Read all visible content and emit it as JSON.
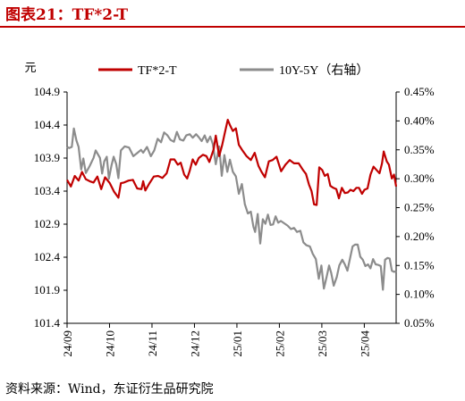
{
  "title": "图表21：TF*2-T",
  "source": "资料来源：Wind，东证衍生品研究院",
  "chart_data": {
    "type": "line",
    "title": "图表21：TF*2-T",
    "ylabel": "元",
    "ylim": [
      101.4,
      104.9
    ],
    "yticks": [
      "104.9",
      "104.4",
      "103.9",
      "103.4",
      "102.9",
      "102.4",
      "101.9",
      "101.4"
    ],
    "y2lim": [
      0.05,
      0.45
    ],
    "y2ticks": [
      "0.45%",
      "0.40%",
      "0.35%",
      "0.30%",
      "0.25%",
      "0.20%",
      "0.15%",
      "0.10%",
      "0.05%"
    ],
    "xticks": [
      "24/09",
      "24/10",
      "24/11",
      "24/12",
      "25/01",
      "25/02",
      "25/03",
      "25/04"
    ],
    "legend_position": "top",
    "series": [
      {
        "name": "TF*2-T",
        "axis": "left",
        "color": "#c00000",
        "points": [
          [
            0.0,
            103.57
          ],
          [
            0.9,
            103.47
          ],
          [
            1.8,
            103.63
          ],
          [
            2.7,
            103.56
          ],
          [
            3.5,
            103.69
          ],
          [
            4.4,
            103.58
          ],
          [
            5.3,
            103.55
          ],
          [
            6.2,
            103.53
          ],
          [
            7.1,
            103.62
          ],
          [
            8.0,
            103.43
          ],
          [
            8.9,
            103.61
          ],
          [
            10.0,
            103.52
          ],
          [
            11.0,
            103.39
          ],
          [
            12.0,
            103.3
          ],
          [
            12.6,
            103.52
          ],
          [
            13.3,
            103.53
          ],
          [
            14.4,
            103.56
          ],
          [
            15.4,
            103.57
          ],
          [
            16.4,
            103.44
          ],
          [
            17.4,
            103.43
          ],
          [
            17.8,
            103.55
          ],
          [
            18.3,
            103.41
          ],
          [
            19.3,
            103.52
          ],
          [
            20.3,
            103.62
          ],
          [
            21.3,
            103.63
          ],
          [
            22.3,
            103.6
          ],
          [
            23.3,
            103.67
          ],
          [
            24.2,
            103.88
          ],
          [
            25.1,
            103.88
          ],
          [
            25.9,
            103.8
          ],
          [
            26.6,
            103.83
          ],
          [
            27.4,
            103.65
          ],
          [
            28.1,
            103.59
          ],
          [
            28.7,
            103.71
          ],
          [
            29.4,
            103.88
          ],
          [
            30.1,
            103.8
          ],
          [
            30.8,
            103.9
          ],
          [
            31.8,
            103.95
          ],
          [
            32.6,
            103.93
          ],
          [
            33.3,
            103.84
          ],
          [
            34.3,
            104.03
          ],
          [
            34.8,
            104.24
          ],
          [
            35.6,
            103.93
          ],
          [
            36.3,
            104.1
          ],
          [
            36.9,
            104.28
          ],
          [
            37.6,
            104.48
          ],
          [
            38.1,
            104.4
          ],
          [
            38.8,
            104.31
          ],
          [
            39.5,
            104.35
          ],
          [
            40.2,
            104.1
          ],
          [
            41.0,
            104.02
          ],
          [
            42.0,
            103.93
          ],
          [
            43.0,
            103.87
          ],
          [
            43.9,
            103.98
          ],
          [
            44.8,
            103.78
          ],
          [
            45.5,
            103.69
          ],
          [
            46.3,
            103.61
          ],
          [
            47.2,
            103.85
          ],
          [
            48.1,
            103.87
          ],
          [
            49.0,
            103.92
          ],
          [
            50.1,
            103.7
          ],
          [
            51.1,
            103.8
          ],
          [
            52.1,
            103.87
          ],
          [
            53.1,
            103.82
          ],
          [
            54.2,
            103.82
          ],
          [
            55.2,
            103.72
          ],
          [
            55.9,
            103.66
          ],
          [
            56.6,
            103.5
          ],
          [
            57.2,
            103.4
          ],
          [
            57.8,
            103.2
          ],
          [
            58.4,
            103.19
          ],
          [
            59.0,
            103.76
          ],
          [
            59.7,
            103.72
          ],
          [
            60.3,
            103.63
          ],
          [
            61.0,
            103.66
          ],
          [
            61.6,
            103.48
          ],
          [
            62.3,
            103.45
          ],
          [
            63.0,
            103.43
          ],
          [
            63.6,
            103.29
          ],
          [
            64.3,
            103.45
          ],
          [
            65.0,
            103.37
          ],
          [
            65.7,
            103.38
          ],
          [
            66.3,
            103.42
          ],
          [
            67.0,
            103.4
          ],
          [
            67.7,
            103.45
          ],
          [
            68.3,
            103.45
          ],
          [
            69.0,
            103.36
          ],
          [
            69.6,
            103.42
          ],
          [
            70.3,
            103.44
          ],
          [
            71.0,
            103.65
          ],
          [
            71.7,
            103.77
          ],
          [
            72.4,
            103.72
          ],
          [
            73.1,
            103.67
          ],
          [
            73.7,
            103.82
          ],
          [
            74.1,
            104.0
          ],
          [
            74.8,
            103.85
          ],
          [
            75.3,
            103.8
          ],
          [
            76.0,
            103.59
          ],
          [
            76.5,
            103.65
          ],
          [
            77.0,
            103.47
          ]
        ]
      },
      {
        "name": "10Y-5Y（右轴）",
        "axis": "right",
        "color": "#8c8c8c",
        "points": [
          [
            0.0,
            0.355
          ],
          [
            0.5,
            0.353
          ],
          [
            1.1,
            0.355
          ],
          [
            1.6,
            0.387
          ],
          [
            2.2,
            0.366
          ],
          [
            2.7,
            0.355
          ],
          [
            3.3,
            0.316
          ],
          [
            3.8,
            0.335
          ],
          [
            4.4,
            0.31
          ],
          [
            5.3,
            0.322
          ],
          [
            6.2,
            0.336
          ],
          [
            6.7,
            0.349
          ],
          [
            7.7,
            0.336
          ],
          [
            8.2,
            0.309
          ],
          [
            8.7,
            0.33
          ],
          [
            9.3,
            0.338
          ],
          [
            9.8,
            0.3
          ],
          [
            10.4,
            0.323
          ],
          [
            10.9,
            0.338
          ],
          [
            11.5,
            0.325
          ],
          [
            12.0,
            0.301
          ],
          [
            12.6,
            0.349
          ],
          [
            13.5,
            0.356
          ],
          [
            14.5,
            0.354
          ],
          [
            15.5,
            0.339
          ],
          [
            16.5,
            0.345
          ],
          [
            17.3,
            0.35
          ],
          [
            17.8,
            0.345
          ],
          [
            18.7,
            0.355
          ],
          [
            19.6,
            0.339
          ],
          [
            20.4,
            0.349
          ],
          [
            21.2,
            0.369
          ],
          [
            22.0,
            0.363
          ],
          [
            22.7,
            0.38
          ],
          [
            23.5,
            0.375
          ],
          [
            24.2,
            0.367
          ],
          [
            25.0,
            0.364
          ],
          [
            25.7,
            0.381
          ],
          [
            26.4,
            0.368
          ],
          [
            27.2,
            0.366
          ],
          [
            27.9,
            0.375
          ],
          [
            28.7,
            0.377
          ],
          [
            29.4,
            0.371
          ],
          [
            30.2,
            0.377
          ],
          [
            30.8,
            0.372
          ],
          [
            31.5,
            0.365
          ],
          [
            32.2,
            0.375
          ],
          [
            32.8,
            0.363
          ],
          [
            33.5,
            0.373
          ],
          [
            34.1,
            0.36
          ],
          [
            34.8,
            0.325
          ],
          [
            35.6,
            0.356
          ],
          [
            36.2,
            0.305
          ],
          [
            36.8,
            0.341
          ],
          [
            37.5,
            0.312
          ],
          [
            38.1,
            0.333
          ],
          [
            38.8,
            0.312
          ],
          [
            39.5,
            0.304
          ],
          [
            40.2,
            0.274
          ],
          [
            40.9,
            0.291
          ],
          [
            41.6,
            0.256
          ],
          [
            42.3,
            0.24
          ],
          [
            43.0,
            0.243
          ],
          [
            43.6,
            0.217
          ],
          [
            44.0,
            0.208
          ],
          [
            44.6,
            0.239
          ],
          [
            45.2,
            0.188
          ],
          [
            45.8,
            0.23
          ],
          [
            46.4,
            0.222
          ],
          [
            47.0,
            0.238
          ],
          [
            47.6,
            0.22
          ],
          [
            48.2,
            0.221
          ],
          [
            48.8,
            0.235
          ],
          [
            49.4,
            0.224
          ],
          [
            50.0,
            0.227
          ],
          [
            50.8,
            0.223
          ],
          [
            51.6,
            0.219
          ],
          [
            52.4,
            0.213
          ],
          [
            53.1,
            0.215
          ],
          [
            53.8,
            0.208
          ],
          [
            54.6,
            0.21
          ],
          [
            55.3,
            0.19
          ],
          [
            56.0,
            0.185
          ],
          [
            56.8,
            0.183
          ],
          [
            57.5,
            0.17
          ],
          [
            58.2,
            0.161
          ],
          [
            58.9,
            0.127
          ],
          [
            59.5,
            0.15
          ],
          [
            60.1,
            0.11
          ],
          [
            60.7,
            0.129
          ],
          [
            61.3,
            0.15
          ],
          [
            61.8,
            0.137
          ],
          [
            62.4,
            0.115
          ],
          [
            63.1,
            0.13
          ],
          [
            63.7,
            0.15
          ],
          [
            64.4,
            0.16
          ],
          [
            65.0,
            0.152
          ],
          [
            65.6,
            0.141
          ],
          [
            66.2,
            0.162
          ],
          [
            66.8,
            0.183
          ],
          [
            67.4,
            0.186
          ],
          [
            68.0,
            0.186
          ],
          [
            68.6,
            0.165
          ],
          [
            69.2,
            0.16
          ],
          [
            69.8,
            0.149
          ],
          [
            70.4,
            0.152
          ],
          [
            71.0,
            0.145
          ],
          [
            71.6,
            0.161
          ],
          [
            72.2,
            0.152
          ],
          [
            72.8,
            0.151
          ],
          [
            73.4,
            0.149
          ],
          [
            73.9,
            0.108
          ],
          [
            74.4,
            0.16
          ],
          [
            75.0,
            0.163
          ],
          [
            75.5,
            0.162
          ],
          [
            76.0,
            0.141
          ],
          [
            76.5,
            0.139
          ],
          [
            77.0,
            0.14
          ]
        ]
      }
    ]
  }
}
